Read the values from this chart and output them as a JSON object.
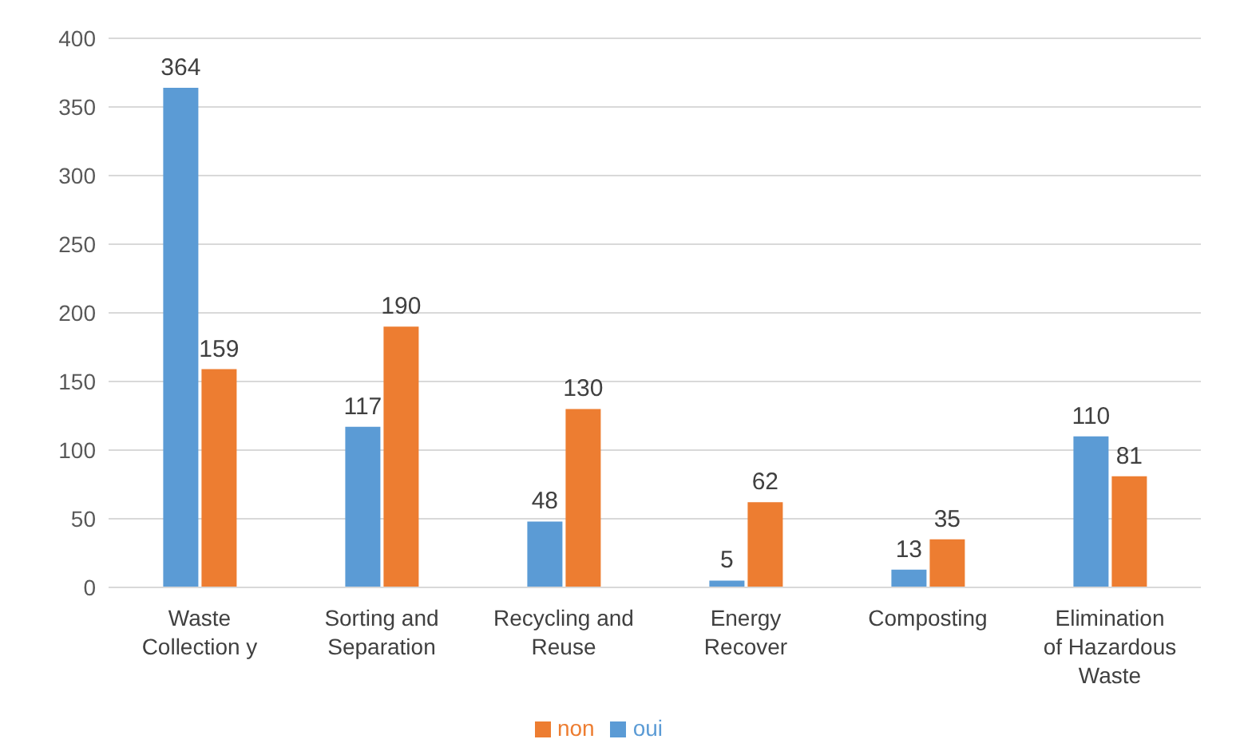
{
  "chart_data": {
    "type": "bar",
    "categories": [
      "Waste Collection y",
      "Sorting and Separation",
      "Recycling and Reuse",
      "Energy Recover",
      "Composting",
      "Elimination of Hazardous Waste"
    ],
    "series": [
      {
        "name": "oui",
        "color": "#5b9bd5",
        "values": [
          364,
          117,
          48,
          5,
          13,
          110
        ]
      },
      {
        "name": "non",
        "color": "#ed7d31",
        "values": [
          159,
          190,
          130,
          62,
          35,
          81
        ]
      }
    ],
    "ylim": [
      0,
      400
    ],
    "yticks": [
      0,
      50,
      100,
      150,
      200,
      250,
      300,
      350,
      400
    ],
    "grid": "y",
    "legend": "bottom",
    "data_labels": true
  }
}
